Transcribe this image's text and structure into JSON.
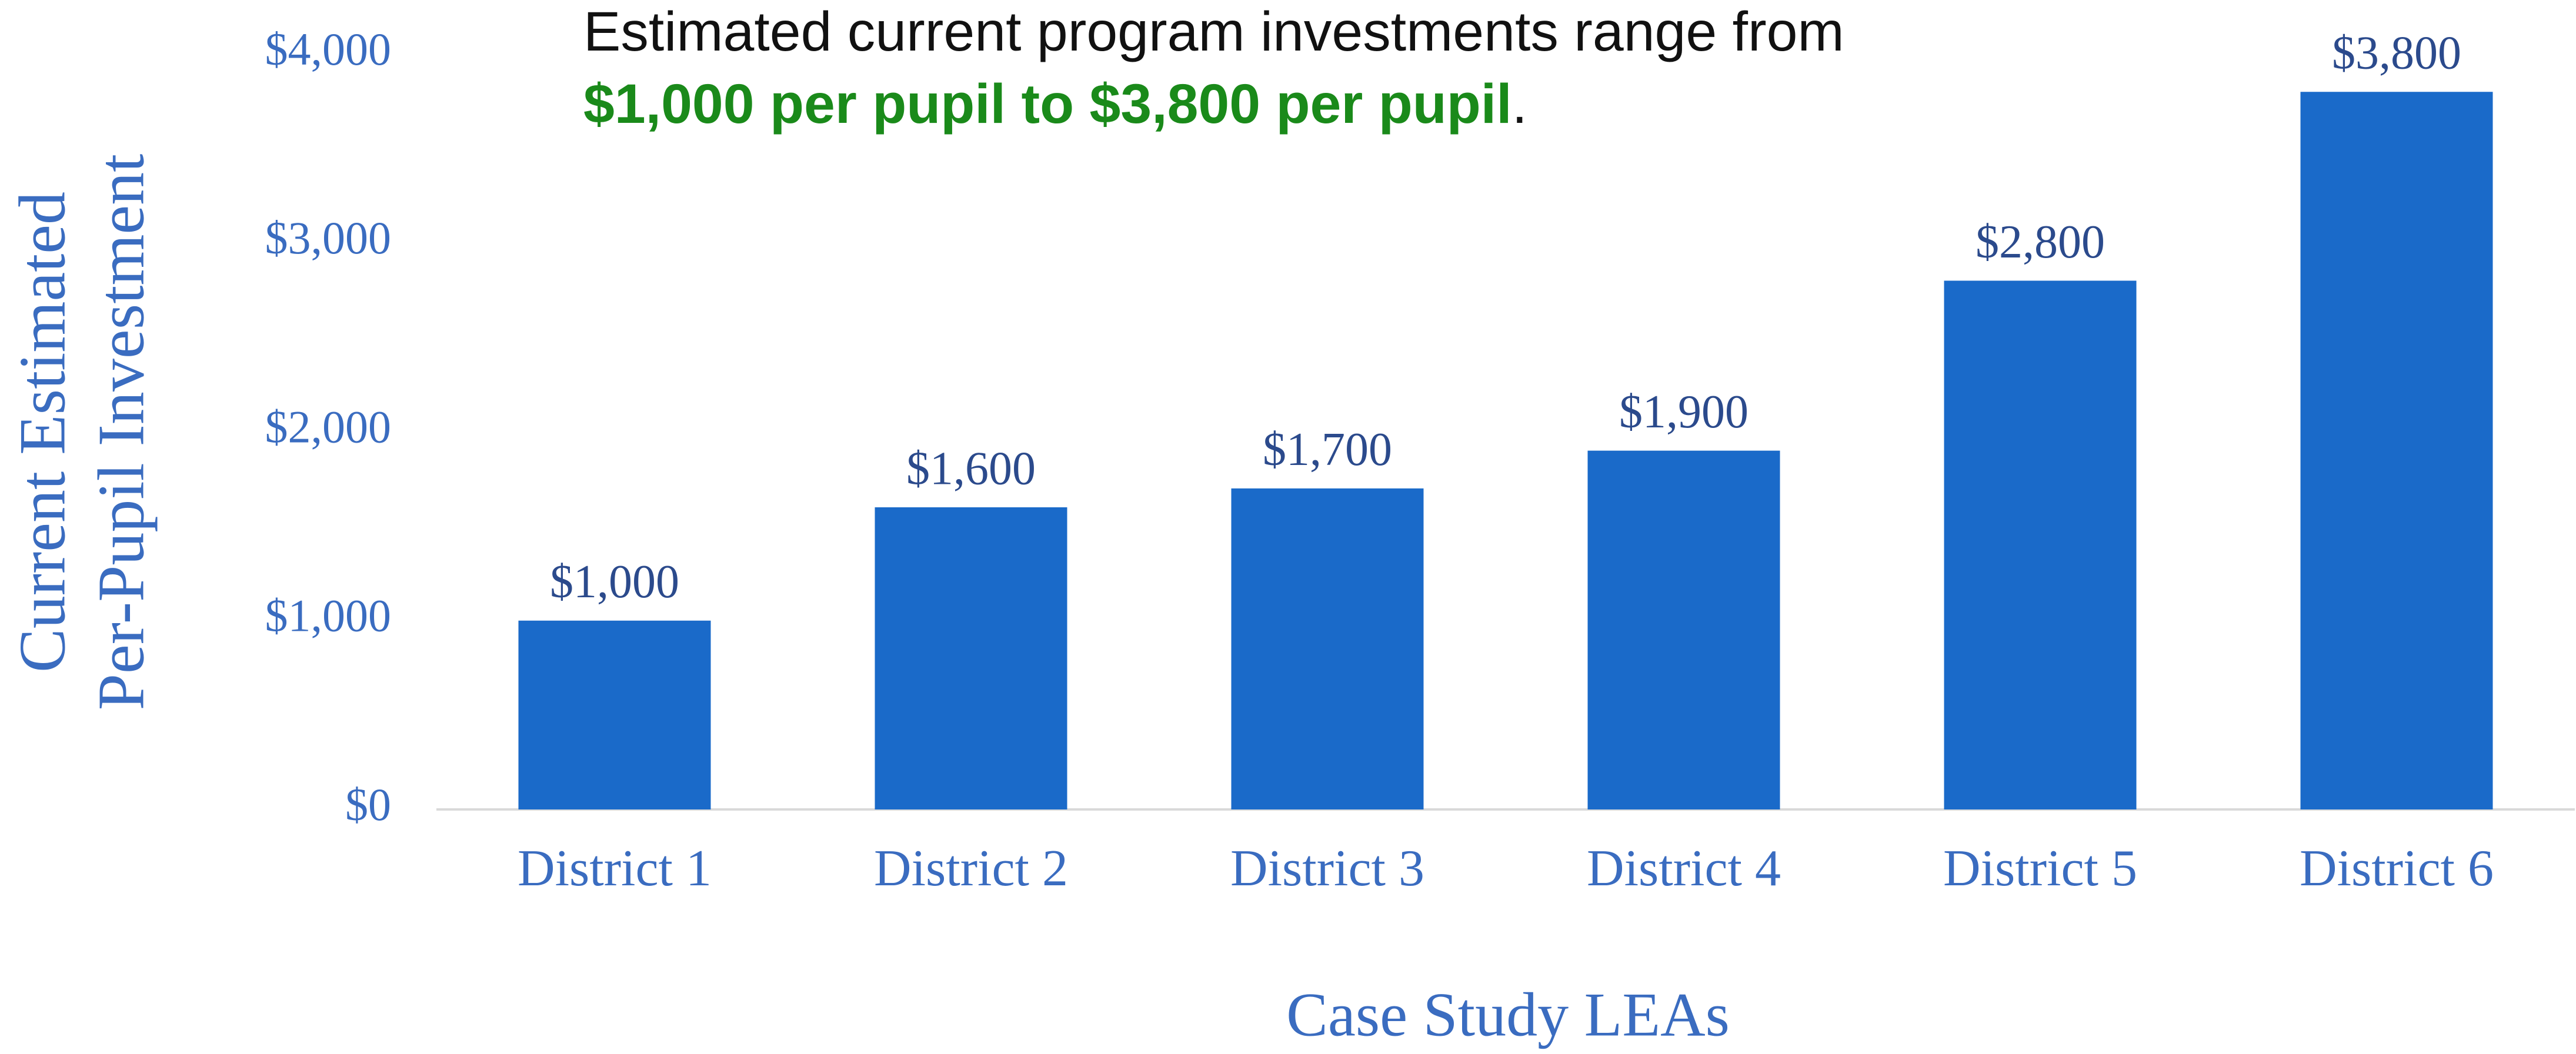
{
  "chart_data": {
    "type": "bar",
    "annotation": {
      "line1": "Estimated current program investments range from",
      "highlight": "$1,000 per pupil to $3,800 per pupil",
      "end": "."
    },
    "ylabel": [
      "Current Estimated",
      "Per-Pupil Investment"
    ],
    "xlabel": "Case Study LEAs",
    "categories": [
      "District 1",
      "District 2",
      "District 3",
      "District 4",
      "District 5",
      "District 6"
    ],
    "values": [
      1000,
      1600,
      1700,
      1900,
      2800,
      3800
    ],
    "value_labels": [
      "$1,000",
      "$1,600",
      "$1,700",
      "$1,900",
      "$2,800",
      "$3,800"
    ],
    "color": "#1a6ac9",
    "ylim": [
      0,
      4000
    ],
    "yticks": [
      {
        "value": 0,
        "label": "$0"
      },
      {
        "value": 1000,
        "label": "$1,000"
      },
      {
        "value": 2000,
        "label": "$2,000"
      },
      {
        "value": 3000,
        "label": "$3,000"
      },
      {
        "value": 4000,
        "label": "$4,000"
      }
    ],
    "grid": false
  }
}
